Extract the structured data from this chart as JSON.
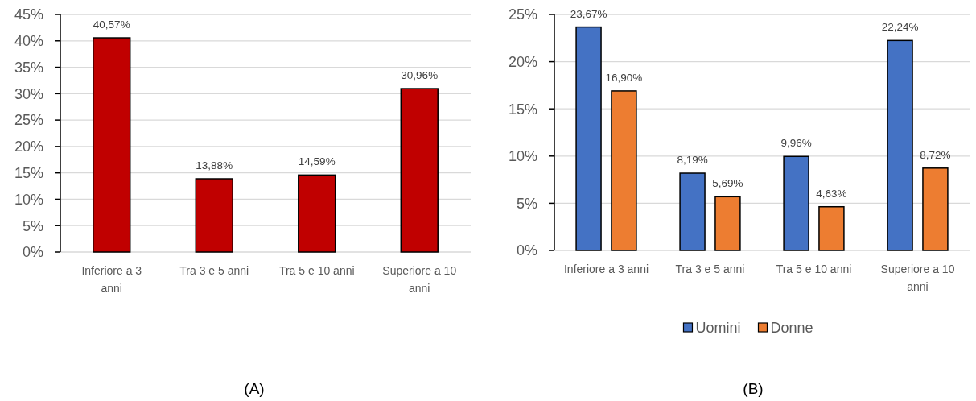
{
  "chart_data": [
    {
      "type": "bar",
      "title": "(A)",
      "categories": [
        "Inferiore a 3 anni",
        "Tra 3 e 5 anni",
        "Tra 5 e 10 anni",
        "Superiore a 10 anni"
      ],
      "values": [
        40.57,
        13.88,
        14.59,
        30.96
      ],
      "value_labels": [
        "40,57%",
        "13,88%",
        "14,59%",
        "30,96%"
      ],
      "color": "#c00000",
      "ylim": [
        0,
        45
      ],
      "yticks": [
        {
          "value": 0,
          "label": "0%"
        },
        {
          "value": 5,
          "label": "5%"
        },
        {
          "value": 10,
          "label": "10%"
        },
        {
          "value": 15,
          "label": "15%"
        },
        {
          "value": 20,
          "label": "20%"
        },
        {
          "value": 25,
          "label": "25%"
        },
        {
          "value": 30,
          "label": "30%"
        },
        {
          "value": 35,
          "label": "35%"
        },
        {
          "value": 40,
          "label": "40%"
        },
        {
          "value": 45,
          "label": "45%"
        }
      ],
      "grid": "y"
    },
    {
      "type": "bar",
      "title": "(B)",
      "categories": [
        "Inferiore a 3 anni",
        "Tra 3 e 5 anni",
        "Tra 5 e 10 anni",
        "Superiore a 10 anni"
      ],
      "series": [
        {
          "name": "Uomini",
          "color": "#4472c4",
          "values": [
            23.67,
            8.19,
            9.96,
            22.24
          ],
          "value_labels": [
            "23,67%",
            "8,19%",
            "9,96%",
            "22,24%"
          ]
        },
        {
          "name": "Donne",
          "color": "#ed7d31",
          "values": [
            16.9,
            5.69,
            4.63,
            8.72
          ],
          "value_labels": [
            "16,90%",
            "5,69%",
            "4,63%",
            "8,72%"
          ]
        }
      ],
      "ylim": [
        0,
        25
      ],
      "yticks": [
        {
          "value": 0,
          "label": "0%"
        },
        {
          "value": 5,
          "label": "5%"
        },
        {
          "value": 10,
          "label": "10%"
        },
        {
          "value": 15,
          "label": "15%"
        },
        {
          "value": 20,
          "label": "20%"
        },
        {
          "value": 25,
          "label": "25%"
        }
      ],
      "grid": "y",
      "legend": "bottom"
    }
  ]
}
